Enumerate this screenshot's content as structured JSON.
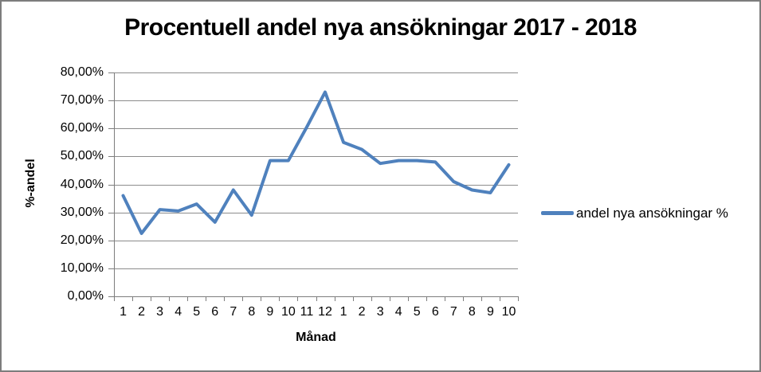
{
  "chart": {
    "title": "Procentuell andel nya ansökningar 2017 - 2018"
  },
  "chart_data": {
    "type": "line",
    "title": "Procentuell andel nya ansökningar 2017 - 2018",
    "xlabel": "Månad",
    "ylabel": "%-andel",
    "categories": [
      "1",
      "2",
      "3",
      "4",
      "5",
      "6",
      "7",
      "8",
      "9",
      "10",
      "11",
      "12",
      "1",
      "2",
      "3",
      "4",
      "5",
      "6",
      "7",
      "8",
      "9",
      "10"
    ],
    "series": [
      {
        "name": "andel nya ansökningar %",
        "values": [
          36,
          22.5,
          31,
          30.5,
          33,
          26.5,
          38,
          29,
          48.5,
          48.5,
          60.5,
          73,
          55,
          52.5,
          47.5,
          48.5,
          48.5,
          48,
          41,
          38,
          37,
          47
        ]
      }
    ],
    "ylim": [
      0,
      80
    ],
    "y_tick_step": 10,
    "y_tick_labels": [
      "80,00%",
      "70,00%",
      "60,00%",
      "50,00%",
      "40,00%",
      "30,00%",
      "20,00%",
      "10,00%",
      "0,00%"
    ],
    "grid": true,
    "legend_position": "right",
    "colors": {
      "line": "#4F81BD",
      "gridline": "#8C8C8C",
      "axis": "#7D7D7D",
      "text": "#000000",
      "frame_border": "#7D7D7D"
    }
  }
}
